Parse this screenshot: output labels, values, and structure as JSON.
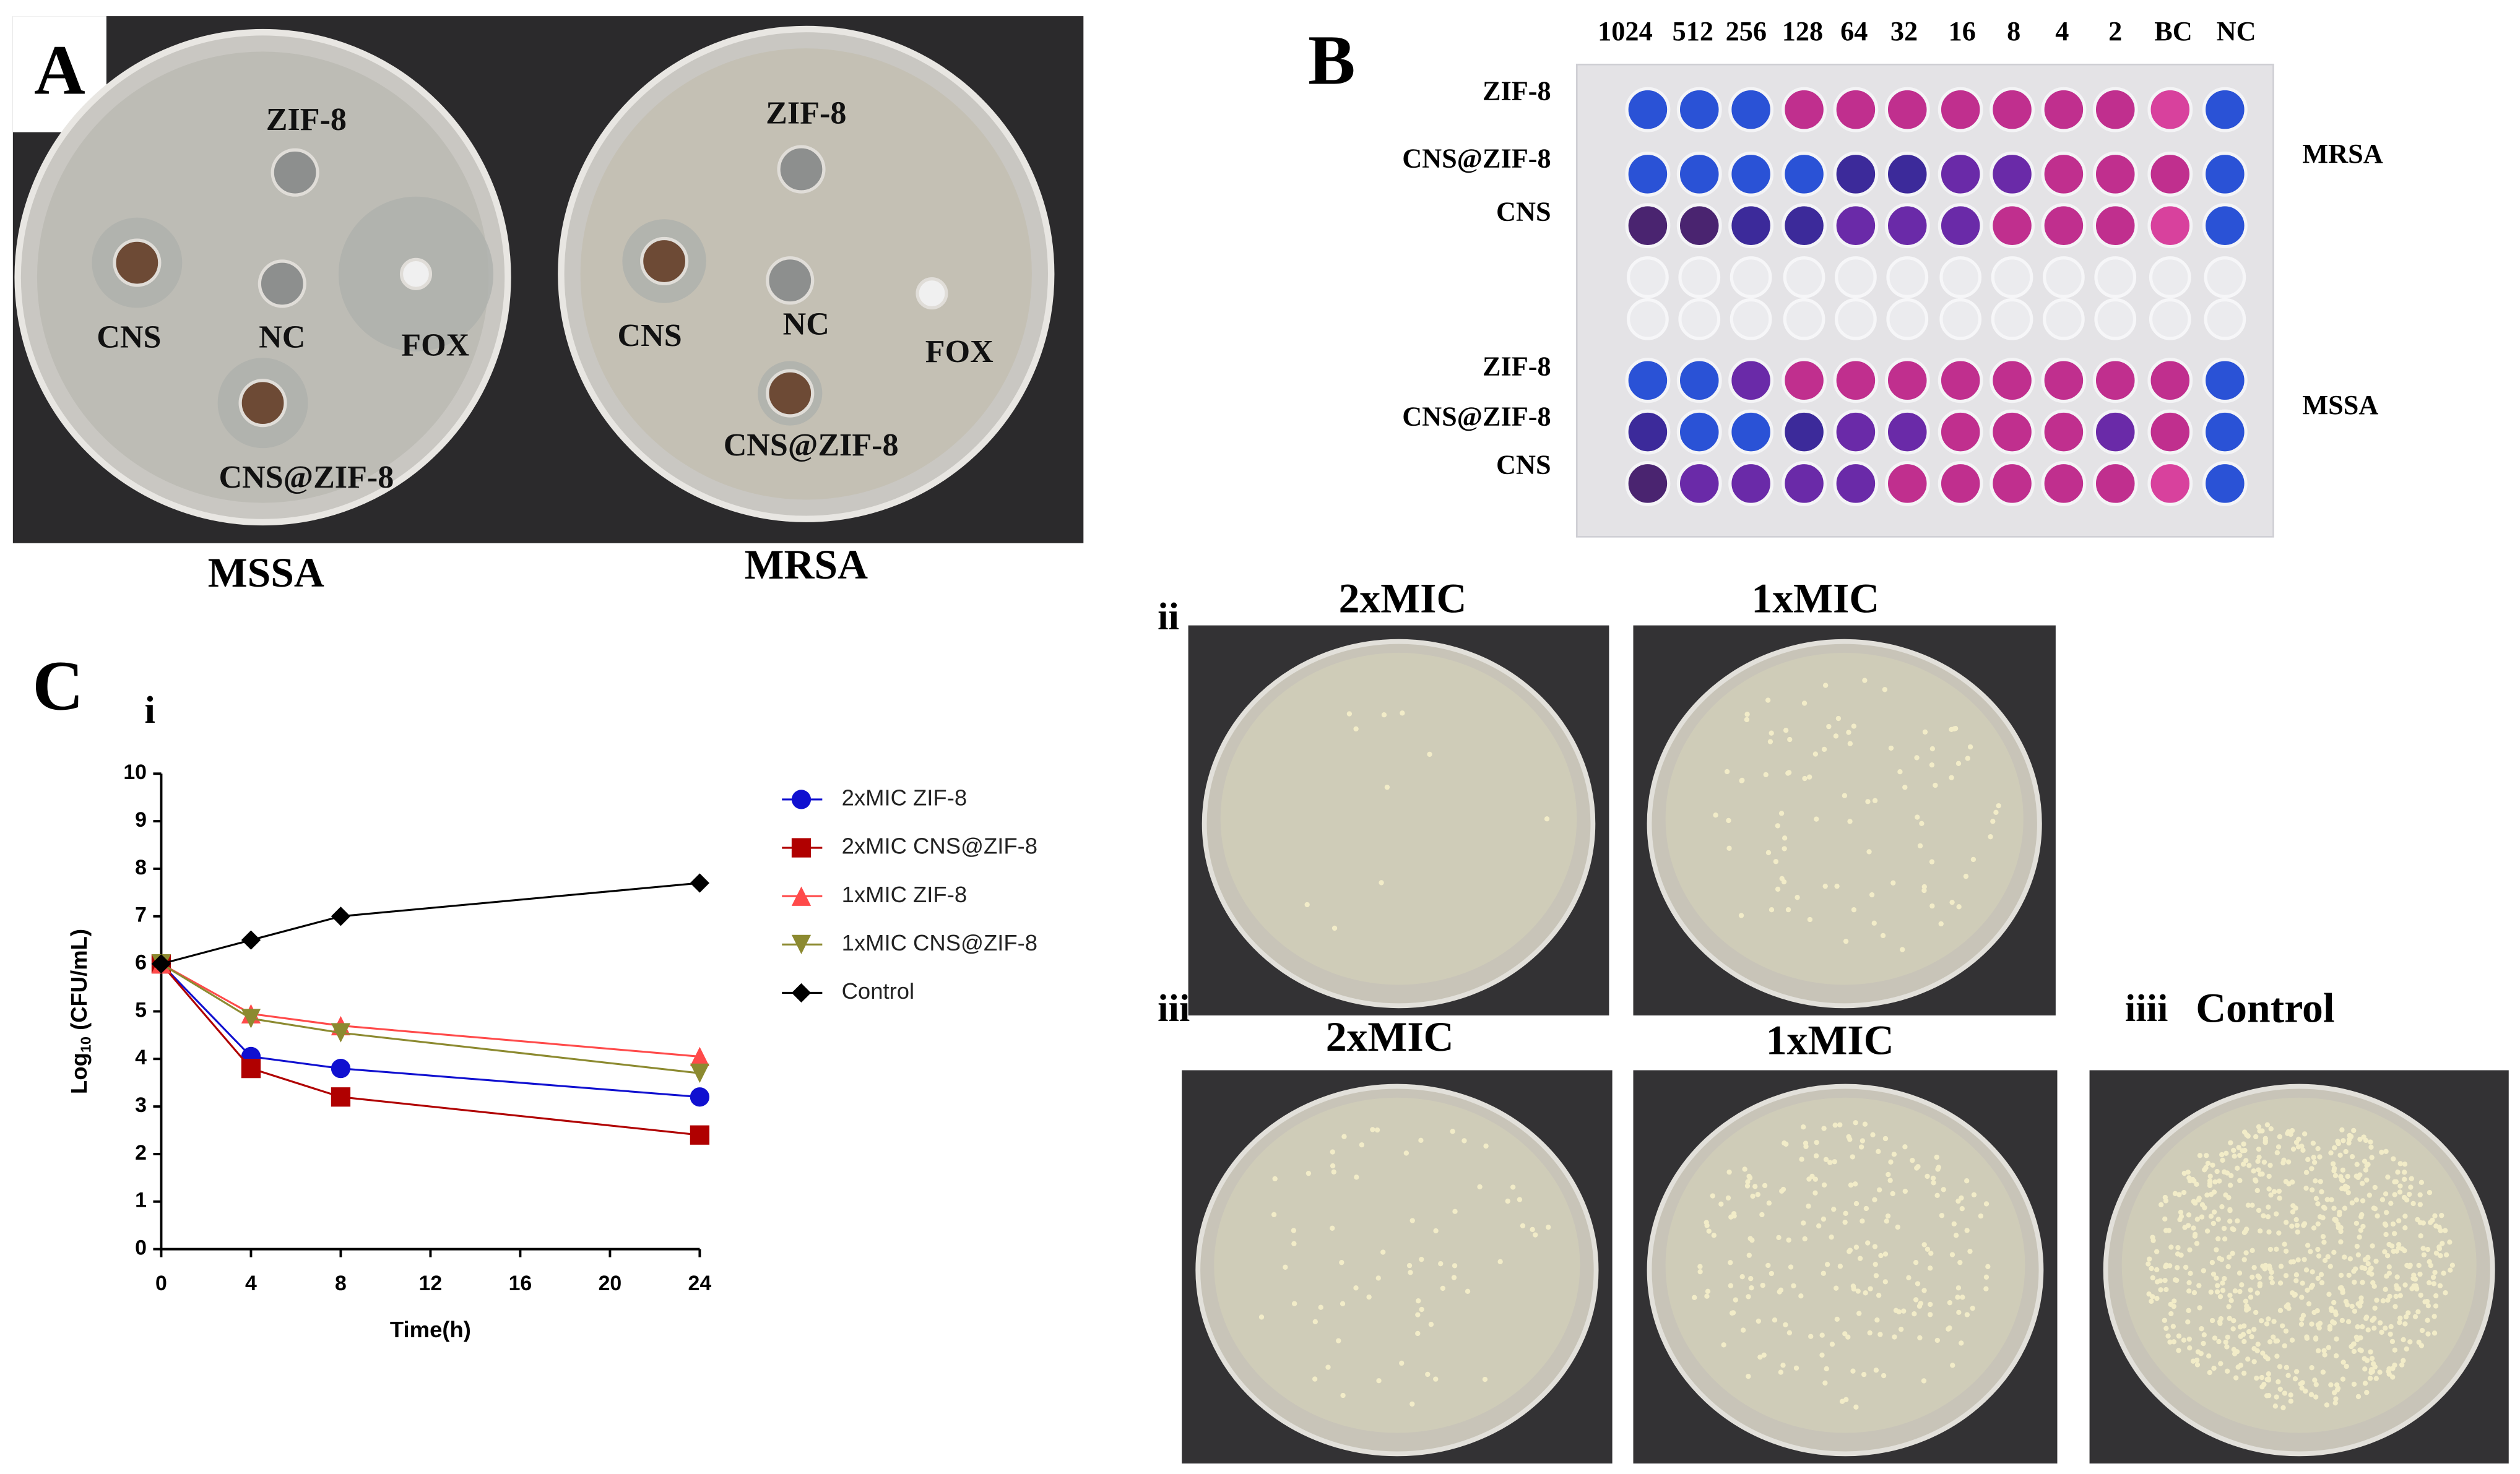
{
  "panel_a": {
    "label": "A",
    "plates": [
      {
        "name": "MSSA",
        "wells": [
          "ZIF-8",
          "CNS",
          "NC",
          "FOX",
          "CNS@ZIF-8"
        ]
      },
      {
        "name": "MRSA",
        "wells": [
          "ZIF-8",
          "CNS",
          "NC",
          "FOX",
          "CNS@ZIF-8"
        ]
      }
    ]
  },
  "panel_b": {
    "label": "B",
    "columns": [
      "1024",
      "512",
      "256",
      "128",
      "64",
      "32",
      "16",
      "8",
      "4",
      "2",
      "BC",
      "NC"
    ],
    "groups": [
      {
        "name": "MRSA",
        "rows": [
          "ZIF-8",
          "CNS@ZIF-8",
          "CNS"
        ]
      },
      {
        "name": "MSSA",
        "rows": [
          "ZIF-8",
          "CNS@ZIF-8",
          "CNS"
        ]
      }
    ]
  },
  "panel_c": {
    "label": "C",
    "chart_label": "i",
    "photo_rows": [
      {
        "label": "ii",
        "plates": [
          "2xMIC",
          "1xMIC"
        ]
      },
      {
        "label": "iii",
        "plates": [
          "2xMIC",
          "1xMIC"
        ]
      },
      {
        "label": "iiii",
        "plates": [
          "Control"
        ]
      }
    ]
  },
  "chart_data": {
    "type": "line",
    "x_label": "Time(h)",
    "y_label_parts": [
      "Log",
      "10",
      " (CFU/mL)"
    ],
    "x": [
      0,
      4,
      8,
      24
    ],
    "xlim": [
      0,
      24
    ],
    "xticks": [
      0,
      4,
      8,
      12,
      16,
      20,
      24
    ],
    "ylim": [
      0,
      10
    ],
    "yticks": [
      0,
      1,
      2,
      3,
      4,
      5,
      6,
      7,
      8,
      9,
      10
    ],
    "series": [
      {
        "name": "2xMIC ZIF-8",
        "color": "#1010d0",
        "marker": "circle",
        "values": [
          6,
          4.05,
          3.8,
          3.2
        ]
      },
      {
        "name": "2xMIC CNS@ZIF-8",
        "color": "#b00000",
        "marker": "square",
        "values": [
          6,
          3.8,
          3.2,
          2.4
        ]
      },
      {
        "name": "1xMIC ZIF-8",
        "color": "#ff4a4a",
        "marker": "triangle",
        "values": [
          6,
          4.95,
          4.7,
          4.05
        ]
      },
      {
        "name": "1xMIC CNS@ZIF-8",
        "color": "#8c8a30",
        "marker": "triangle-down",
        "values": [
          6,
          4.85,
          4.55,
          3.7
        ]
      },
      {
        "name": "Control",
        "color": "#000000",
        "marker": "diamond",
        "values": [
          6,
          6.5,
          7.0,
          7.7
        ]
      }
    ]
  }
}
